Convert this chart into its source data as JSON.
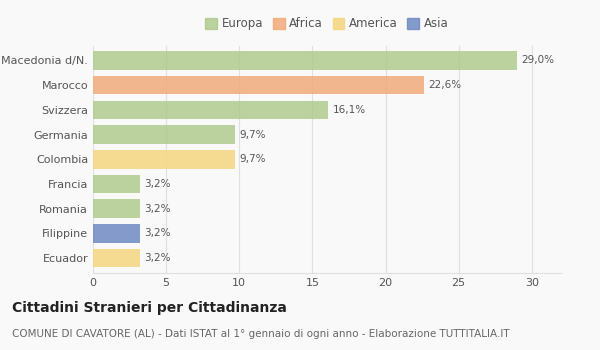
{
  "categories": [
    "Macedonia d/N.",
    "Marocco",
    "Svizzera",
    "Germania",
    "Colombia",
    "Francia",
    "Romania",
    "Filippine",
    "Ecuador"
  ],
  "values": [
    29.0,
    22.6,
    16.1,
    9.7,
    9.7,
    3.2,
    3.2,
    3.2,
    3.2
  ],
  "colors": [
    "#aec98a",
    "#f0a877",
    "#aec98a",
    "#aec98a",
    "#f5d57a",
    "#aec98a",
    "#aec98a",
    "#6b85c0",
    "#f5d57a"
  ],
  "labels": [
    "29,0%",
    "22,6%",
    "16,1%",
    "9,7%",
    "9,7%",
    "3,2%",
    "3,2%",
    "3,2%",
    "3,2%"
  ],
  "legend_labels": [
    "Europa",
    "Africa",
    "America",
    "Asia"
  ],
  "legend_colors": [
    "#aec98a",
    "#f0a877",
    "#f5d57a",
    "#6b85c0"
  ],
  "title": "Cittadini Stranieri per Cittadinanza",
  "subtitle": "COMUNE DI CAVATORE (AL) - Dati ISTAT al 1° gennaio di ogni anno - Elaborazione TUTTITALIA.IT",
  "xlim": [
    0,
    32
  ],
  "xticks": [
    0,
    5,
    10,
    15,
    20,
    25,
    30
  ],
  "background_color": "#f9f9f9",
  "grid_color": "#e0e0e0",
  "bar_height": 0.75,
  "title_fontsize": 10,
  "subtitle_fontsize": 7.5,
  "label_fontsize": 7.5,
  "tick_fontsize": 8,
  "legend_fontsize": 8.5
}
